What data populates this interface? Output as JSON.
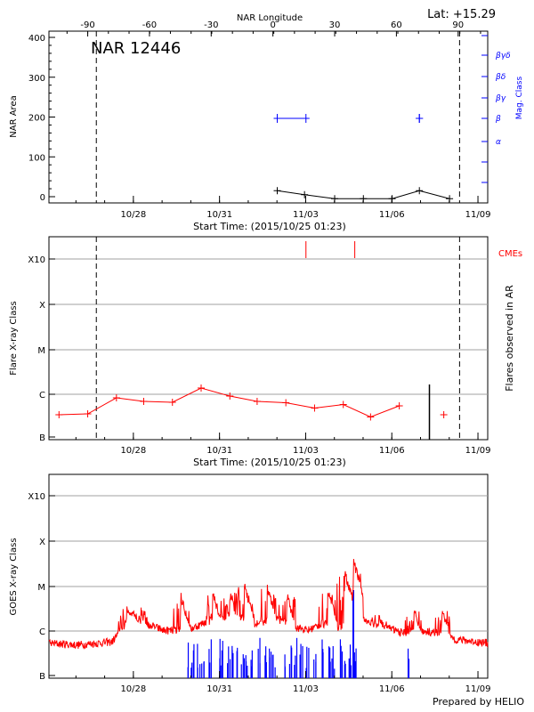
{
  "header": {
    "lat_label": "Lat: +15.29",
    "footer": "Prepared by HELIO"
  },
  "colors": {
    "axis": "#000000",
    "grid": "#a0a0a0",
    "black_series": "#000000",
    "blue": "#0000ff",
    "red": "#ff0000"
  },
  "chart_data": [
    {
      "id": "nar",
      "type": "line",
      "title": "NAR 12446",
      "ylabel": "NAR Area",
      "ylabel_right": "Mag. Class",
      "xlabel": "Start Time: (2015/10/25 01:23)",
      "top_axis_label": "NAR Longitude",
      "ylim": [
        0,
        400
      ],
      "yticks": [
        0,
        100,
        200,
        300,
        400
      ],
      "xlim_days": [
        0,
        15.28
      ],
      "xticks": [
        {
          "day": 2.94,
          "label": "10/28"
        },
        {
          "day": 5.94,
          "label": "10/31"
        },
        {
          "day": 8.94,
          "label": "11/03"
        },
        {
          "day": 11.94,
          "label": "11/06"
        },
        {
          "day": 14.94,
          "label": "11/09"
        }
      ],
      "longitude_ticks": [
        {
          "day": 1.35,
          "label": "-90"
        },
        {
          "day": 3.5,
          "label": "-60"
        },
        {
          "day": 5.65,
          "label": "-30"
        },
        {
          "day": 7.8,
          "label": "0"
        },
        {
          "day": 9.95,
          "label": "30"
        },
        {
          "day": 12.1,
          "label": "60"
        },
        {
          "day": 14.25,
          "label": "90"
        }
      ],
      "limb_days": [
        1.65,
        14.3
      ],
      "area_series": {
        "x": [
          7.95,
          8.9,
          9.95,
          10.95,
          11.95,
          12.9,
          13.95
        ],
        "y": [
          15,
          5,
          -5,
          -5,
          -5,
          15,
          -5
        ]
      },
      "mag_classes": [
        "α",
        "β",
        "βγ",
        "βδ",
        "βγδ"
      ],
      "mag_class_points": [
        {
          "x_start": 7.95,
          "x_end": 8.95,
          "class_index": 1
        },
        {
          "x_start": 12.9,
          "x_end": 12.9,
          "class_index": 1
        }
      ]
    },
    {
      "id": "flares",
      "type": "line",
      "ylabel": "Flare X-ray Class",
      "ylabel_right": "Flares observed in AR",
      "xlabel": "Start Time: (2015/10/25 01:23)",
      "ylim_classes": [
        "B",
        "C",
        "M",
        "X",
        "X10"
      ],
      "cme_label": "CMEs",
      "cme_days": [
        8.95,
        10.65
      ],
      "limb_days": [
        1.65,
        14.3
      ],
      "series": {
        "x": [
          0.35,
          1.35,
          2.35,
          3.3,
          4.3,
          5.3,
          6.3,
          7.25,
          8.25,
          9.25,
          10.25,
          11.2,
          12.2,
          13.75
        ],
        "y_class": [
          0.5,
          0.52,
          0.88,
          0.8,
          0.78,
          1.1,
          0.92,
          0.8,
          0.77,
          0.65,
          0.73,
          0.45,
          0.7,
          0.5
        ]
      },
      "flare_count_bar": {
        "day": 13.25,
        "count_fraction": 0.85
      },
      "xticks": [
        {
          "day": 2.94,
          "label": "10/28"
        },
        {
          "day": 5.94,
          "label": "10/31"
        },
        {
          "day": 8.94,
          "label": "11/03"
        },
        {
          "day": 11.94,
          "label": "11/06"
        },
        {
          "day": 14.94,
          "label": "11/09"
        }
      ]
    },
    {
      "id": "goes",
      "type": "line",
      "ylabel": "GOES X-ray Class",
      "ylim_classes": [
        "B",
        "C",
        "M",
        "X",
        "X10"
      ],
      "xticks": [
        {
          "day": 2.94,
          "label": "10/28"
        },
        {
          "day": 5.94,
          "label": "10/31"
        },
        {
          "day": 8.94,
          "label": "11/03"
        },
        {
          "day": 11.94,
          "label": "11/06"
        },
        {
          "day": 14.94,
          "label": "11/09"
        }
      ],
      "red_baseline_keypoints": {
        "x": [
          0,
          1,
          2.2,
          2.9,
          3.4,
          4.0,
          4.8,
          5.5,
          6.0,
          6.5,
          7.2,
          8.0,
          8.5,
          9.0,
          9.5,
          10.2,
          10.6,
          11.0,
          11.6,
          12.3,
          12.9,
          13.5,
          14.2,
          15.28
        ],
        "y_class": [
          0.72,
          0.68,
          0.75,
          1.35,
          1.15,
          1.0,
          1.0,
          1.2,
          1.3,
          1.35,
          1.15,
          1.25,
          1.1,
          1.0,
          1.15,
          1.05,
          1.5,
          1.2,
          1.1,
          0.95,
          1.0,
          0.95,
          0.8,
          0.72
        ]
      },
      "red_peaks": [
        {
          "day": 2.7,
          "y_class": 1.5
        },
        {
          "day": 3.2,
          "y_class": 1.45
        },
        {
          "day": 4.6,
          "y_class": 1.75
        },
        {
          "day": 5.7,
          "y_class": 1.85
        },
        {
          "day": 6.3,
          "y_class": 1.85
        },
        {
          "day": 6.8,
          "y_class": 2.0
        },
        {
          "day": 7.6,
          "y_class": 1.95
        },
        {
          "day": 8.3,
          "y_class": 1.75
        },
        {
          "day": 9.7,
          "y_class": 1.95
        },
        {
          "day": 10.3,
          "y_class": 2.3
        },
        {
          "day": 10.6,
          "y_class": 2.55
        },
        {
          "day": 11.5,
          "y_class": 1.35
        },
        {
          "day": 12.7,
          "y_class": 1.45
        },
        {
          "day": 13.7,
          "y_class": 1.45
        }
      ],
      "blue_spikes_days": [
        4.9,
        5.0,
        5.2,
        5.35,
        5.6,
        5.9,
        6.0,
        6.25,
        6.4,
        6.6,
        6.75,
        6.9,
        7.05,
        7.3,
        7.55,
        7.7,
        7.85,
        8.2,
        8.4,
        8.6,
        8.8,
        9.0,
        9.25,
        9.5,
        9.75,
        9.9,
        10.2,
        10.35,
        10.45,
        10.55,
        10.65,
        12.5
      ]
    }
  ]
}
